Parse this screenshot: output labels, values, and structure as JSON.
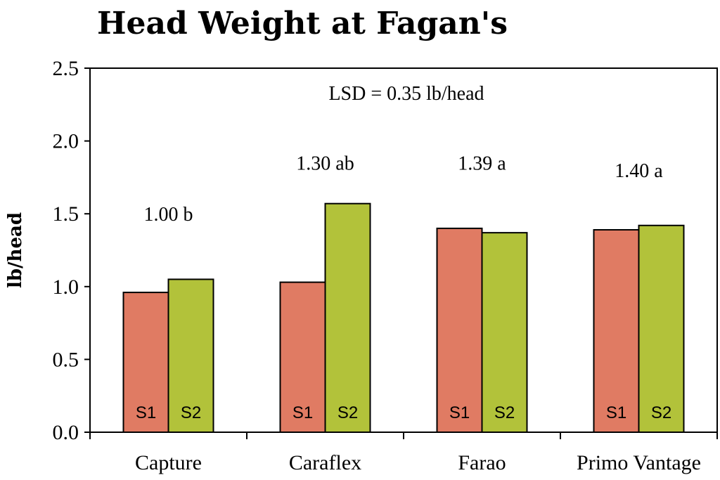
{
  "chart_data": {
    "type": "bar",
    "title": "Head Weight at Fagan's",
    "ylabel": "lb/head",
    "xlabel": "",
    "ylim": [
      0,
      2.5
    ],
    "yticks": [
      "0.0",
      "0.5",
      "1.0",
      "1.5",
      "2.0",
      "2.5"
    ],
    "categories": [
      "Capture",
      "Caraflex",
      "Farao",
      "Primo Vantage"
    ],
    "series": [
      {
        "name": "S1",
        "values": [
          0.96,
          1.03,
          1.4,
          1.39
        ],
        "color": "#e07b63"
      },
      {
        "name": "S2",
        "values": [
          1.05,
          1.57,
          1.37,
          1.42
        ],
        "color": "#b2c23a"
      }
    ],
    "group_labels": [
      "1.00 b",
      "1.30 ab",
      "1.39 a",
      "1.40 a"
    ],
    "group_label_values": [
      1.5,
      1.85,
      1.85,
      1.8
    ],
    "annotation": "LSD = 0.35 lb/head",
    "grid": false,
    "legend": "none"
  }
}
